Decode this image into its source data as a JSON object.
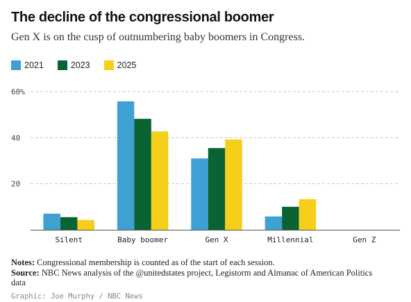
{
  "title": "The decline of the congressional boomer",
  "subtitle": "Gen X is on the cusp of outnumbering baby boomers in Congress.",
  "notes_label": "Notes:",
  "notes_text": "Congressional membership is counted as of the start of each session.",
  "source_label": "Source:",
  "source_text": "NBC News analysis of the @unitedstates project, Legistorm and Almanac of American Politics data",
  "credit": "Graphic: Joe Murphy / NBC News",
  "chart_data": {
    "type": "bar",
    "categories": [
      "Silent",
      "Baby boomer",
      "Gen X",
      "Millennial",
      "Gen Z"
    ],
    "series": [
      {
        "name": "2021",
        "color": "#3fa1d3",
        "values": [
          7,
          55.8,
          31,
          5.8,
          0
        ]
      },
      {
        "name": "2023",
        "color": "#0a6332",
        "values": [
          5.5,
          48.2,
          35.5,
          10,
          0
        ]
      },
      {
        "name": "2025",
        "color": "#f5cf1a",
        "values": [
          4.3,
          42.7,
          39.2,
          13.3,
          0
        ]
      }
    ],
    "y_ticks": [
      "20",
      "40",
      "60%"
    ],
    "y_tick_values": [
      20,
      40,
      60
    ],
    "ylim": [
      0,
      60
    ],
    "grid": true,
    "legend_position": "top-left"
  }
}
